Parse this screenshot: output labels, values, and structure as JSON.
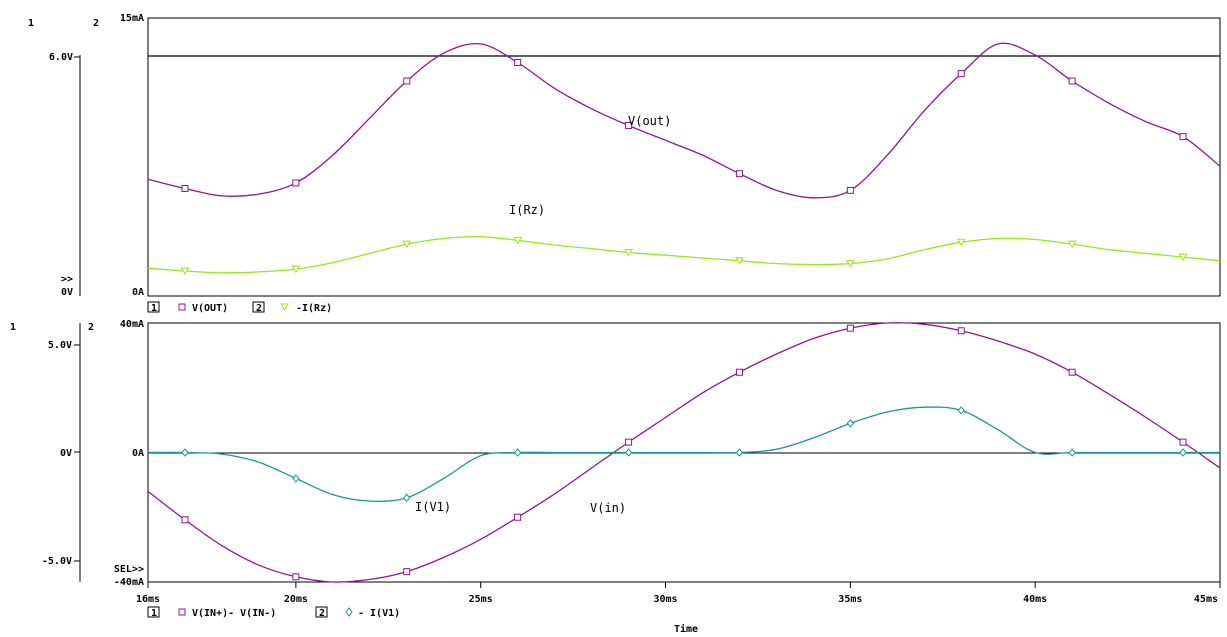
{
  "colors": {
    "purple": "#8c1a8c",
    "green": "#99e619",
    "teal": "#1a9999",
    "axis": "#000000"
  },
  "x_axis": {
    "ticks": [
      "16ms",
      "20ms",
      "25ms",
      "30ms",
      "35ms",
      "40ms",
      "45ms"
    ],
    "label": "Time"
  },
  "chart_data": [
    {
      "type": "line",
      "axis_ids": {
        "left": "1",
        "right": "2"
      },
      "left_axis": {
        "ticks": [
          "0V",
          "6.0V"
        ],
        "range": [
          0,
          7.5
        ],
        "marker": ">>"
      },
      "right_axis": {
        "ticks": [
          "0A",
          "15mA"
        ],
        "range": [
          0,
          15
        ]
      },
      "reference_line": {
        "value": 6.0,
        "axis": "left"
      },
      "series": [
        {
          "name": "V(OUT)",
          "axis": "left",
          "color": "purple",
          "marker": "square",
          "annotation": "V(out)",
          "x": [
            16,
            17,
            18,
            19,
            20,
            21,
            22,
            23,
            24,
            25,
            26,
            27,
            28,
            29,
            30,
            31,
            32,
            33,
            34,
            35,
            36,
            37,
            38,
            39,
            40,
            41,
            42,
            43,
            44,
            45
          ],
          "y": [
            3.15,
            2.9,
            2.7,
            2.75,
            3.05,
            3.8,
            4.8,
            5.8,
            6.55,
            6.8,
            6.3,
            5.6,
            5.05,
            4.6,
            4.2,
            3.8,
            3.3,
            2.85,
            2.65,
            2.85,
            3.8,
            5.0,
            6.0,
            6.8,
            6.5,
            5.8,
            5.2,
            4.7,
            4.3,
            3.5
          ]
        },
        {
          "name": "-I(Rz)",
          "axis": "right",
          "color": "green",
          "marker": "triangle",
          "annotation": "I(Rz)",
          "x": [
            16,
            17,
            18,
            19,
            20,
            21,
            22,
            23,
            24,
            25,
            26,
            27,
            28,
            29,
            30,
            31,
            32,
            33,
            34,
            35,
            36,
            37,
            38,
            39,
            40,
            41,
            42,
            43,
            44,
            45
          ],
          "y": [
            1.5,
            1.35,
            1.25,
            1.3,
            1.45,
            1.8,
            2.3,
            2.8,
            3.1,
            3.2,
            3.0,
            2.75,
            2.55,
            2.35,
            2.2,
            2.05,
            1.9,
            1.75,
            1.7,
            1.75,
            2.0,
            2.5,
            2.9,
            3.1,
            3.05,
            2.8,
            2.5,
            2.3,
            2.1,
            1.9
          ]
        }
      ],
      "legend": [
        {
          "id": "1",
          "marker": "square",
          "color": "purple",
          "text": "V(OUT)"
        },
        {
          "id": "2",
          "marker": "triangle",
          "color": "green",
          "text": "-I(Rz)"
        }
      ]
    },
    {
      "type": "line",
      "axis_ids": {
        "left": "1",
        "right": "2"
      },
      "left_axis": {
        "ticks": [
          "-5.0V",
          "0V",
          "5.0V"
        ],
        "range": [
          -5.0,
          5.0
        ],
        "marker": "SEL>>"
      },
      "right_axis": {
        "ticks": [
          "-40mA",
          "0A",
          "40mA"
        ],
        "range": [
          -40,
          40
        ]
      },
      "series": [
        {
          "name": "V(IN+)- V(IN-)",
          "axis": "left",
          "color": "purple",
          "marker": "square",
          "annotation": "V(in)",
          "x": [
            16,
            17,
            18,
            19,
            20,
            21,
            22,
            23,
            24,
            25,
            26,
            27,
            28,
            29,
            30,
            31,
            32,
            33,
            34,
            35,
            36,
            37,
            38,
            39,
            40,
            41,
            42,
            43,
            44,
            45
          ],
          "y": [
            -1.5,
            -2.6,
            -3.6,
            -4.35,
            -4.8,
            -5.0,
            -4.9,
            -4.6,
            -4.05,
            -3.35,
            -2.5,
            -1.6,
            -0.6,
            0.4,
            1.35,
            2.3,
            3.1,
            3.8,
            4.4,
            4.8,
            5.0,
            4.95,
            4.7,
            4.3,
            3.8,
            3.1,
            2.25,
            1.35,
            0.4,
            -0.6
          ]
        },
        {
          "name": "- I(V1)",
          "axis": "right",
          "color": "teal",
          "marker": "diamond",
          "annotation": "I(V1)",
          "x": [
            16,
            17,
            18,
            19,
            20,
            21,
            22,
            23,
            24,
            25,
            26,
            27,
            28,
            29,
            30,
            31,
            32,
            33,
            34,
            35,
            36,
            37,
            38,
            39,
            40,
            41,
            42,
            43,
            44,
            45
          ],
          "y": [
            0,
            0,
            -0.5,
            -3,
            -8,
            -13,
            -15,
            -14,
            -8,
            -1,
            0,
            0,
            0,
            0,
            0,
            0,
            0,
            1,
            4.5,
            9,
            12.5,
            14,
            13,
            7,
            0,
            0,
            0,
            0,
            0,
            0
          ]
        }
      ],
      "legend": [
        {
          "id": "1",
          "marker": "square",
          "color": "purple",
          "text": "V(IN+)- V(IN-)"
        },
        {
          "id": "2",
          "marker": "diamond",
          "color": "teal",
          "text": "- I(V1)"
        }
      ]
    }
  ]
}
